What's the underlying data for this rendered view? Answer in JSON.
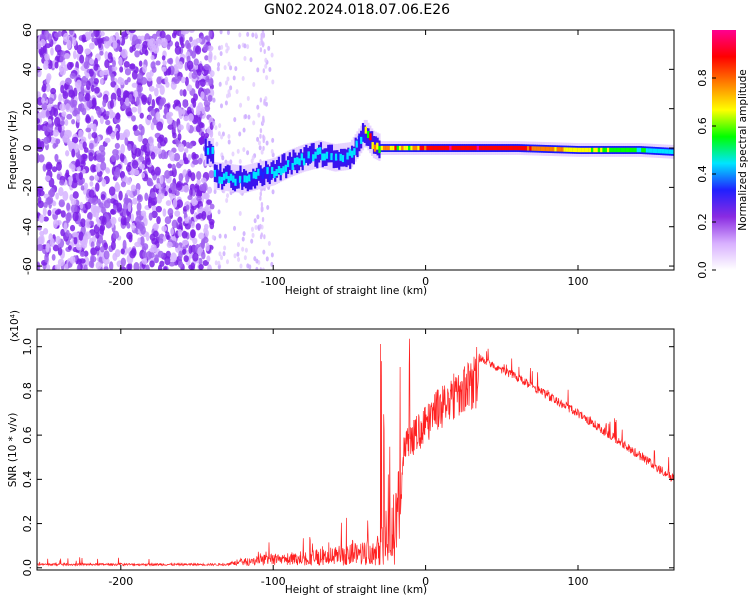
{
  "title": "GN02.2024.018.07.06.E26",
  "chart_data": [
    {
      "type": "heatmap",
      "xlabel": "Height of straight line (km)",
      "ylabel": "Frequency (Hz)",
      "xlim": [
        -255,
        163
      ],
      "ylim": [
        -62,
        60
      ],
      "x_ticks": [
        -200,
        -100,
        0,
        100
      ],
      "x_tick_labels": [
        "-200",
        "-100",
        "0",
        "100"
      ],
      "y_ticks": [
        -60,
        -40,
        -20,
        0,
        20,
        40,
        60
      ],
      "y_tick_labels": [
        "-60",
        "-40",
        "-20",
        "0",
        "20",
        "40",
        "60"
      ],
      "colorbar": {
        "label": "Normalized spectral amplitude",
        "range": [
          0,
          1
        ],
        "ticks": [
          0,
          0.2,
          0.4,
          0.6,
          0.8
        ],
        "tick_labels": [
          "0.0",
          "0.2",
          "0.4",
          "0.6",
          "0.8"
        ],
        "colors": [
          "#ffffff",
          "#d8b0ff",
          "#8a2be2",
          "#2020ff",
          "#00e5ff",
          "#00ff00",
          "#ffff00",
          "#ff8000",
          "#ff0000",
          "#ff0090"
        ]
      },
      "ridge": {
        "x": [
          -140,
          -130,
          -120,
          -110,
          -100,
          -90,
          -80,
          -70,
          -60,
          -50,
          -45,
          -40,
          -35,
          -30,
          -20,
          -10,
          0,
          20,
          60,
          100,
          140,
          163
        ],
        "freq": [
          -14,
          -15,
          -16,
          -14,
          -12,
          -8,
          -5,
          -3,
          -5,
          -4,
          2,
          8,
          2,
          0,
          0,
          0,
          0,
          0,
          0,
          -1,
          -1,
          -2
        ]
      },
      "noise_region": [
        -255,
        -140
      ],
      "grid": false
    },
    {
      "type": "line",
      "xlabel": "Height of straight line (km)",
      "ylabel": "SNR (10 * v/v)",
      "y_multiplier": "(x10⁴)",
      "xlim": [
        -255,
        163
      ],
      "ylim": [
        -0.01,
        1.08
      ],
      "x_ticks": [
        -200,
        -100,
        0,
        100
      ],
      "x_tick_labels": [
        "-200",
        "-100",
        "0",
        "100"
      ],
      "y_ticks": [
        0.0,
        0.2,
        0.4,
        0.6,
        0.8,
        1.0
      ],
      "y_tick_labels": [
        "0.0",
        "0.2",
        "0.4",
        "0.6",
        "0.8",
        "1.0"
      ],
      "color": "#ff2020",
      "envelope_x": [
        -255,
        -130,
        -110,
        -60,
        -40,
        -30,
        -20,
        -15,
        0,
        20,
        35,
        60,
        100,
        163
      ],
      "envelope_y": [
        0.02,
        0.02,
        0.04,
        0.08,
        0.12,
        0.16,
        0.35,
        0.6,
        0.75,
        0.9,
        0.97,
        0.88,
        0.72,
        0.42
      ],
      "grid": false
    }
  ]
}
